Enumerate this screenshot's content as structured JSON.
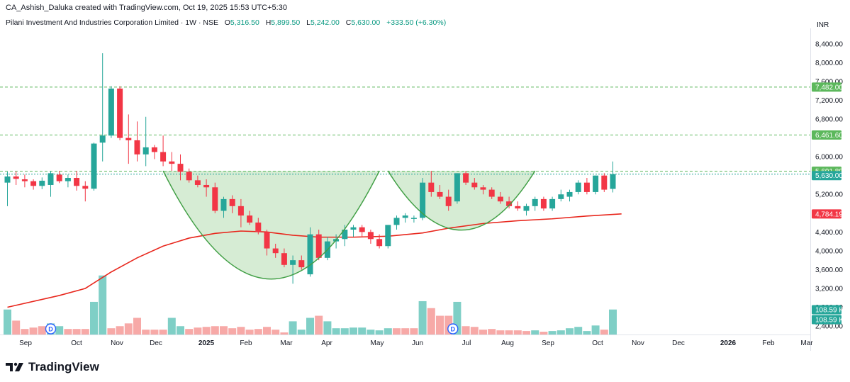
{
  "header": {
    "created_by": "CA_Ashish_Daluka created with TradingView.com, Oct 19, 2025 15:53 UTC+5:30"
  },
  "symbol": {
    "title": "Pilani Investment And Industries Corporation Limited · 1W · NSE",
    "o_label": "O",
    "o_value": "5,316.50",
    "h_label": "H",
    "h_value": "5,899.50",
    "l_label": "L",
    "l_value": "5,242.00",
    "c_label": "C",
    "c_value": "5,630.00",
    "change": "+333.50 (+6.30%)"
  },
  "colors": {
    "up": "#26a69a",
    "down": "#f23645",
    "vol_up": "#7fcfc6",
    "vol_down": "#f7a9a7",
    "ma": "#e8271d",
    "fill": "#cfe9cc",
    "curve": "#43a047",
    "hline": "#5cb85c"
  },
  "footer": {
    "brand": "TradingView",
    "logo": "tradingview-logo-icon"
  },
  "chart_data": {
    "type": "candlestick",
    "currency": "INR",
    "y_ticks": [
      "8,400.00",
      "8,000.00",
      "7,600.00",
      "7,200.00",
      "6,800.00",
      "6,000.00",
      "5,200.00",
      "4,400.00",
      "4,000.00",
      "3,600.00",
      "3,200.00",
      "2,800.00",
      "2,400.00"
    ],
    "ylim": [
      2250,
      8700
    ],
    "x_ticks": [
      "Sep",
      "Oct",
      "Nov",
      "Dec",
      "2025",
      "Feb",
      "Mar",
      "Apr",
      "May",
      "Jun",
      "Jul",
      "Aug",
      "Sep",
      "Oct",
      "Nov",
      "Dec",
      "2026",
      "Feb",
      "Mar"
    ],
    "horizontal_levels": [
      {
        "value": 7482,
        "label": "7,482.00"
      },
      {
        "value": 6461.6,
        "label": "6,461.60"
      },
      {
        "value": 5691.8,
        "label": "5,691.80"
      }
    ],
    "price_labels": [
      {
        "value": 5630,
        "label": "5,630.00",
        "color": "#26a69a"
      },
      {
        "value": 4784.19,
        "label": "4,784.19",
        "color": "#f23645"
      }
    ],
    "volume_labels": [
      "108.59 K",
      "108.59 K"
    ],
    "dividend_markers": [
      "D",
      "D"
    ],
    "candles": [
      [
        5450,
        5680,
        4950,
        5580
      ],
      [
        5580,
        5690,
        5400,
        5530
      ],
      [
        5520,
        5620,
        5350,
        5480
      ],
      [
        5480,
        5520,
        5300,
        5380
      ],
      [
        5380,
        5560,
        5310,
        5490
      ],
      [
        5400,
        5700,
        5150,
        5650
      ],
      [
        5620,
        5700,
        5440,
        5480
      ],
      [
        5480,
        5620,
        5350,
        5550
      ],
      [
        5550,
        5700,
        5280,
        5380
      ],
      [
        5380,
        5480,
        5050,
        5320
      ],
      [
        5320,
        6300,
        5280,
        6280
      ],
      [
        6300,
        8200,
        5900,
        6450
      ],
      [
        6450,
        7500,
        6400,
        7450
      ],
      [
        7450,
        7500,
        6350,
        6400
      ],
      [
        6400,
        6900,
        5850,
        6350
      ],
      [
        6350,
        6750,
        5900,
        6050
      ],
      [
        6050,
        6850,
        5800,
        6200
      ],
      [
        6200,
        6250,
        5950,
        6100
      ],
      [
        6100,
        6450,
        5800,
        5900
      ],
      [
        5900,
        6100,
        5700,
        5850
      ],
      [
        5850,
        6050,
        5500,
        5680
      ],
      [
        5680,
        5750,
        5450,
        5500
      ],
      [
        5500,
        5600,
        5350,
        5400
      ],
      [
        5400,
        5520,
        5150,
        5350
      ],
      [
        5350,
        5450,
        4800,
        4850
      ],
      [
        4850,
        5150,
        4700,
        5100
      ],
      [
        5100,
        5180,
        4800,
        4950
      ],
      [
        4950,
        5100,
        4500,
        4750
      ],
      [
        4750,
        4850,
        4550,
        4600
      ],
      [
        4600,
        4700,
        4350,
        4400
      ],
      [
        4400,
        4450,
        3900,
        4050
      ],
      [
        4050,
        4150,
        3850,
        3950
      ],
      [
        3950,
        4050,
        3650,
        3700
      ],
      [
        3700,
        3900,
        3300,
        3800
      ],
      [
        3800,
        3900,
        3600,
        3650
      ],
      [
        3500,
        4500,
        3450,
        4350
      ],
      [
        4350,
        4450,
        3800,
        3850
      ],
      [
        3850,
        4300,
        3800,
        4200
      ],
      [
        4200,
        4350,
        4050,
        4250
      ],
      [
        4250,
        4550,
        4100,
        4450
      ],
      [
        4450,
        4550,
        4300,
        4500
      ],
      [
        4500,
        4550,
        4300,
        4400
      ],
      [
        4400,
        4450,
        4150,
        4250
      ],
      [
        4250,
        4350,
        4050,
        4100
      ],
      [
        4100,
        4550,
        4050,
        4550
      ],
      [
        4550,
        4750,
        4450,
        4700
      ],
      [
        4700,
        4800,
        4600,
        4750
      ],
      [
        4700,
        4750,
        4600,
        4700
      ],
      [
        4700,
        5550,
        4650,
        5450
      ],
      [
        5450,
        5700,
        5150,
        5250
      ],
      [
        5250,
        5400,
        5100,
        5150
      ],
      [
        5150,
        5300,
        4850,
        4950
      ],
      [
        5050,
        5650,
        5000,
        5650
      ],
      [
        5650,
        5700,
        5400,
        5450
      ],
      [
        5450,
        5550,
        5300,
        5350
      ],
      [
        5350,
        5400,
        5200,
        5300
      ],
      [
        5300,
        5350,
        5100,
        5150
      ],
      [
        5150,
        5250,
        5000,
        5050
      ],
      [
        5050,
        5150,
        4900,
        4950
      ],
      [
        4950,
        5050,
        4850,
        4900
      ],
      [
        4850,
        5000,
        4750,
        4950
      ],
      [
        4950,
        5150,
        4850,
        5100
      ],
      [
        5100,
        5150,
        4850,
        4900
      ],
      [
        4900,
        5150,
        4850,
        5100
      ],
      [
        5100,
        5300,
        5050,
        5200
      ],
      [
        5150,
        5300,
        5050,
        5250
      ],
      [
        5250,
        5500,
        5200,
        5450
      ],
      [
        5450,
        5550,
        5200,
        5250
      ],
      [
        5250,
        5600,
        5200,
        5600
      ],
      [
        5600,
        5650,
        5250,
        5300
      ],
      [
        5316.5,
        5899.5,
        5242,
        5630
      ]
    ],
    "volumes": [
      [
        36,
        1
      ],
      [
        20,
        0
      ],
      [
        8,
        0
      ],
      [
        10,
        0
      ],
      [
        12,
        0
      ],
      [
        16,
        1
      ],
      [
        12,
        1
      ],
      [
        8,
        0
      ],
      [
        8,
        0
      ],
      [
        8,
        0
      ],
      [
        47,
        1
      ],
      [
        85,
        1
      ],
      [
        9,
        0
      ],
      [
        12,
        0
      ],
      [
        16,
        0
      ],
      [
        24,
        0
      ],
      [
        7,
        0
      ],
      [
        7,
        0
      ],
      [
        7,
        0
      ],
      [
        24,
        1
      ],
      [
        12,
        1
      ],
      [
        8,
        0
      ],
      [
        10,
        0
      ],
      [
        11,
        0
      ],
      [
        12,
        0
      ],
      [
        12,
        0
      ],
      [
        9,
        0
      ],
      [
        11,
        0
      ],
      [
        7,
        0
      ],
      [
        8,
        0
      ],
      [
        11,
        0
      ],
      [
        7,
        0
      ],
      [
        3,
        0
      ],
      [
        19,
        1
      ],
      [
        7,
        1
      ],
      [
        24,
        1
      ],
      [
        27,
        0
      ],
      [
        19,
        1
      ],
      [
        9,
        1
      ],
      [
        9,
        1
      ],
      [
        10,
        1
      ],
      [
        10,
        1
      ],
      [
        7,
        1
      ],
      [
        6,
        1
      ],
      [
        9,
        1
      ],
      [
        9,
        0
      ],
      [
        9,
        0
      ],
      [
        9,
        0
      ],
      [
        48,
        1
      ],
      [
        38,
        0
      ],
      [
        27,
        0
      ],
      [
        27,
        0
      ],
      [
        47,
        1
      ],
      [
        12,
        0
      ],
      [
        11,
        0
      ],
      [
        7,
        0
      ],
      [
        8,
        0
      ],
      [
        6,
        0
      ],
      [
        6,
        0
      ],
      [
        6,
        0
      ],
      [
        5,
        0
      ],
      [
        6,
        1
      ],
      [
        4,
        0
      ],
      [
        5,
        1
      ],
      [
        6,
        1
      ],
      [
        9,
        1
      ],
      [
        11,
        1
      ],
      [
        5,
        1
      ],
      [
        13,
        1
      ],
      [
        7,
        0
      ],
      [
        36,
        1
      ]
    ],
    "ma": [
      [
        0,
        2800
      ],
      [
        6,
        3050
      ],
      [
        9,
        3200
      ],
      [
        12,
        3550
      ],
      [
        15,
        3850
      ],
      [
        18,
        4100
      ],
      [
        21,
        4270
      ],
      [
        24,
        4370
      ],
      [
        27,
        4420
      ],
      [
        30,
        4400
      ],
      [
        33,
        4330
      ],
      [
        36,
        4290
      ],
      [
        40,
        4290
      ],
      [
        44,
        4310
      ],
      [
        48,
        4380
      ],
      [
        51,
        4480
      ],
      [
        55,
        4580
      ],
      [
        59,
        4640
      ],
      [
        63,
        4680
      ],
      [
        67,
        4740
      ],
      [
        71,
        4784
      ]
    ],
    "cup1": {
      "start": [
        18,
        5700
      ],
      "bottom": [
        30.5,
        3400
      ],
      "end": [
        43,
        5700
      ]
    },
    "cup2": {
      "start": [
        44,
        5700
      ],
      "bottom": [
        52.5,
        4440
      ],
      "end": [
        61,
        5700
      ]
    }
  }
}
